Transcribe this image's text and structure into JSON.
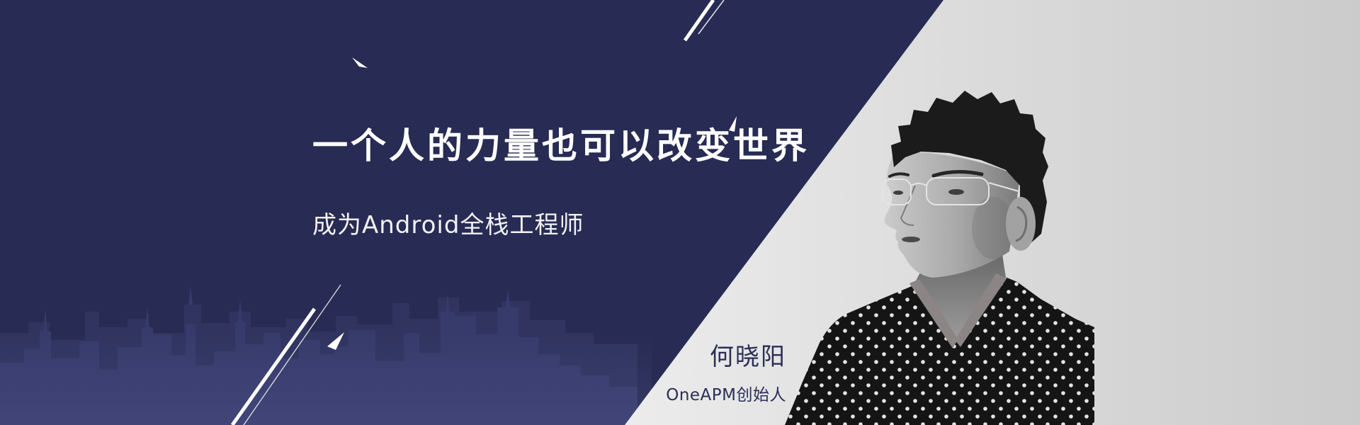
{
  "banner": {
    "title": "一个人的力量也可以改变世界",
    "subtitle": "成为Android全栈工程师"
  },
  "speaker": {
    "name": "何晓阳",
    "role": "OneAPM创始人"
  },
  "colors": {
    "background_navy": "#282b53",
    "title_text": "#ffffff",
    "speaker_text": "#2b2e56"
  }
}
